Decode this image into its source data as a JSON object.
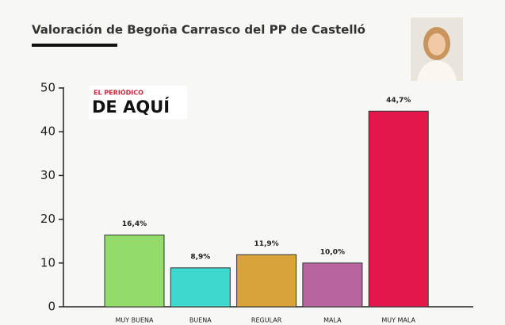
{
  "logo": {
    "top": "EL PERIÓDICO",
    "main": "DE AQUÍ"
  },
  "chart_data": {
    "type": "bar",
    "title": "Valoración de Begoña Carrasco del PP de Castelló",
    "categories": [
      "MUY BUENA",
      "BUENA",
      "REGULAR",
      "MALA",
      "MUY MALA"
    ],
    "values": [
      16.4,
      8.9,
      11.9,
      10.0,
      44.7
    ],
    "value_labels": [
      "16,4%",
      "8,9%",
      "11,9%",
      "10,0%",
      "44,7%"
    ],
    "colors": [
      "#93dc6c",
      "#3fd8cf",
      "#d9a33b",
      "#b8649e",
      "#e3174b"
    ],
    "ylim": [
      0,
      50
    ],
    "yticks": [
      0,
      10,
      20,
      30,
      40,
      50
    ],
    "grid": false
  }
}
